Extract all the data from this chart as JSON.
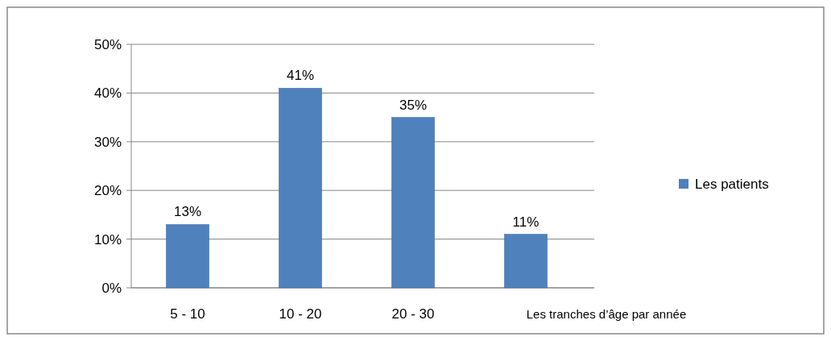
{
  "chart_data": {
    "type": "bar",
    "categories": [
      "5 - 10",
      "10 - 20",
      "20 - 30",
      null
    ],
    "xlabel": "Les tranches d’âge par année",
    "series": [
      {
        "name": "Les patients",
        "color": "#4f81bd",
        "values": [
          13,
          41,
          35,
          11
        ]
      }
    ],
    "ylim": [
      0,
      50
    ],
    "yticks": [
      {
        "value": 0,
        "label": "0%"
      },
      {
        "value": 10,
        "label": "10%"
      },
      {
        "value": 20,
        "label": "20%"
      },
      {
        "value": 30,
        "label": "30%"
      },
      {
        "value": 40,
        "label": "40%"
      },
      {
        "value": 50,
        "label": "50%"
      }
    ],
    "value_labels": [
      "13%",
      "41%",
      "35%",
      "11%"
    ],
    "grid": "y",
    "legend": "right"
  }
}
